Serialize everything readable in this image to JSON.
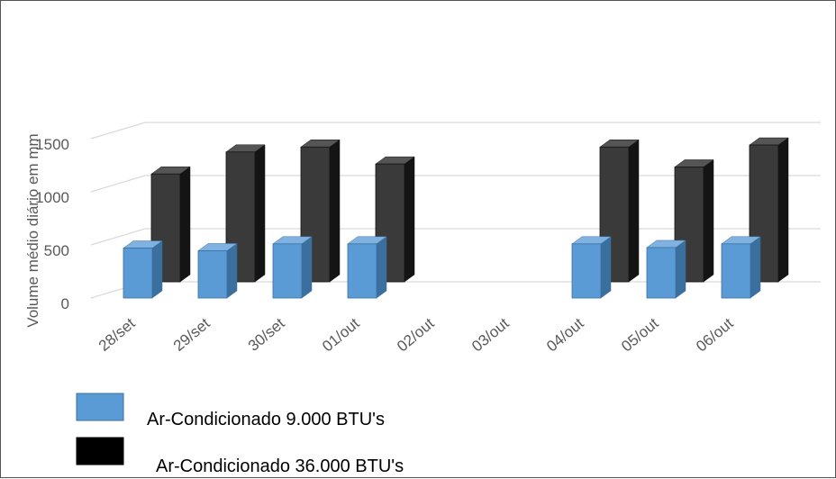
{
  "chart_data": {
    "type": "bar",
    "title": "",
    "xlabel": "",
    "ylabel": "Volume médio diário em mm",
    "ylim": [
      0,
      1500
    ],
    "yticks": [
      "0",
      "500",
      "1000",
      "1500"
    ],
    "categories": [
      "28/set",
      "29/set",
      "30/set",
      "01/out",
      "02/out",
      "03/out",
      "04/out",
      "05/out",
      "06/out"
    ],
    "series": [
      {
        "name": "Ar-Condicionado 9.000 BTU's",
        "color": "#5b9bd5",
        "side_color": "#3a6f9e",
        "top_color": "#7fb2e0",
        "values": [
          470,
          445,
          510,
          510,
          null,
          null,
          510,
          475,
          510
        ]
      },
      {
        "name": "Ar-Condicionado 36.000 BTU's",
        "color": "#3a3a3a",
        "side_color": "#141414",
        "top_color": "#555555",
        "values": [
          1080,
          1300,
          1350,
          1180,
          null,
          null,
          1350,
          1150,
          1370
        ]
      }
    ],
    "grid": true,
    "legend_position": "bottom-left"
  }
}
